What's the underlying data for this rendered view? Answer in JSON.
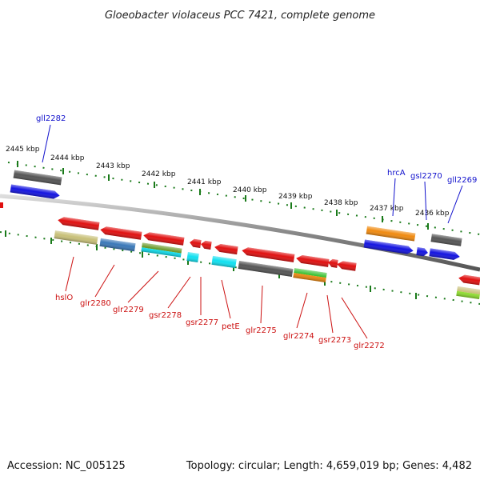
{
  "title": "Gloeobacter violaceus PCC 7421, complete genome",
  "footer": {
    "accession": "Accession: NC_005125",
    "topology": "Topology: circular; Length: 4,659,019 bp; Genes: 4,482"
  },
  "kbp_labels": [
    "2445 kbp",
    "2444 kbp",
    "2443 kbp",
    "2442 kbp",
    "2441 kbp",
    "2440 kbp",
    "2439 kbp",
    "2438 kbp",
    "2437 kbp",
    "2436 kbp"
  ],
  "forward_labels": [
    "gll2282",
    "hrcA",
    "gsl2270",
    "gll2269"
  ],
  "reverse_labels": [
    "hslO",
    "glr2280",
    "glr2279",
    "gsr2278",
    "gsr2277",
    "petE",
    "glr2275",
    "glr2274",
    "gsr2273",
    "glr2272"
  ],
  "colors": {
    "label_forward": "#1111cc",
    "label_reverse": "#cc1111",
    "tick": "#1a7a1a",
    "gene_red": "#e01010",
    "gene_blue": "#1414e0",
    "gene_gray": "#555555",
    "gene_orange": "#f08a10",
    "gene_khaki": "#c8c078",
    "gene_steelblue": "#3a78b8",
    "gene_olive": "#6a9a2a",
    "gene_cyan": "#10e0f0",
    "gene_green": "#38c030",
    "gene_lime": "#90e030"
  }
}
